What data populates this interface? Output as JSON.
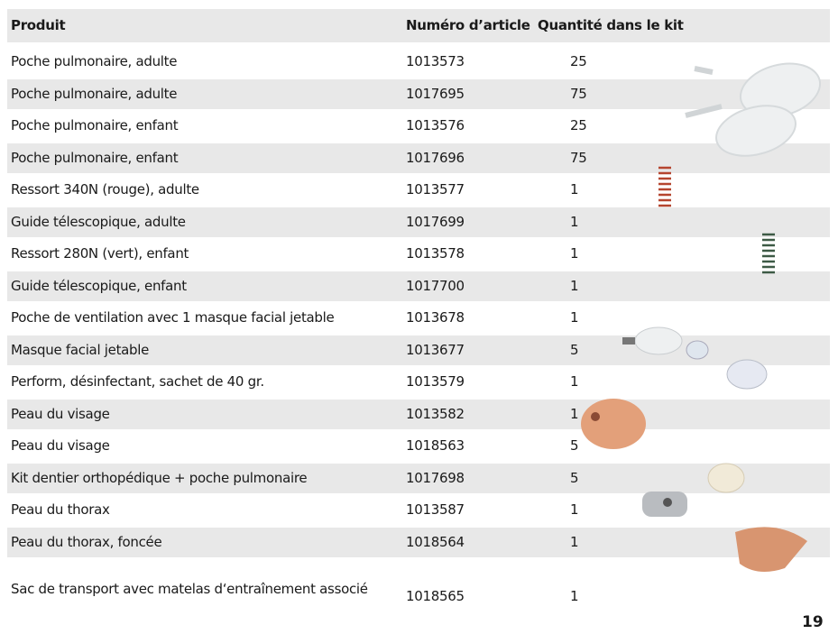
{
  "table": {
    "header": [
      "Produit",
      "Numéro d’article",
      "Quantité dans le kit"
    ],
    "rows": [
      [
        "Poche pulmonaire, adulte",
        "1013573",
        "25"
      ],
      [
        "Poche pulmonaire, adulte",
        "1017695",
        "75"
      ],
      [
        "Poche pulmonaire, enfant",
        "1013576",
        "25"
      ],
      [
        "Poche pulmonaire, enfant",
        "1017696",
        "75"
      ],
      [
        "Ressort 340N (rouge), adulte",
        "1013577",
        "1"
      ],
      [
        "Guide télescopique, adulte",
        "1017699",
        "1"
      ],
      [
        "Ressort 280N (vert), enfant",
        "1013578",
        "1"
      ],
      [
        "Guide télescopique, enfant",
        "1017700",
        "1"
      ],
      [
        "Poche de ventilation avec 1 masque facial jetable",
        "1013678",
        "1"
      ],
      [
        "Masque facial jetable",
        "1013677",
        "5"
      ],
      [
        "Perform, désinfectant, sachet de 40 gr.",
        "1013579",
        "1"
      ],
      [
        "Peau du visage",
        "1013582",
        "1"
      ],
      [
        "Peau du visage",
        "1018563",
        "5"
      ],
      [
        "Kit dentier orthopédique + poche pulmonaire",
        "1017698",
        "5"
      ],
      [
        "Peau du thorax",
        "1013587",
        "1"
      ],
      [
        "Peau du thorax, foncée",
        "1018564",
        "1"
      ],
      [
        "Sac de transport avec matelas d‘entraînement associé",
        "1018565",
        "1"
      ]
    ]
  },
  "page_number": "19"
}
